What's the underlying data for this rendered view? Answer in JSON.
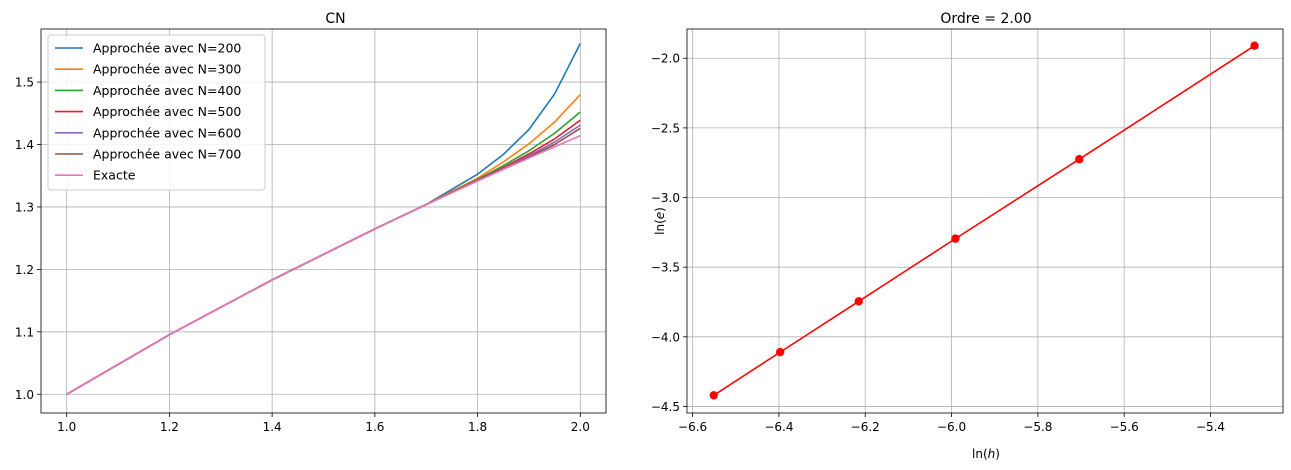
{
  "chart_data": [
    {
      "type": "line",
      "title": "CN",
      "xlabel": "",
      "ylabel": "",
      "xlim": [
        0.95,
        2.05
      ],
      "ylim": [
        0.97,
        1.585
      ],
      "xticks": [
        1.0,
        1.2,
        1.4,
        1.6,
        1.8,
        2.0
      ],
      "xtick_labels": [
        "1.0",
        "1.2",
        "1.4",
        "1.6",
        "1.8",
        "2.0"
      ],
      "yticks": [
        1.0,
        1.1,
        1.2,
        1.3,
        1.4,
        1.5
      ],
      "ytick_labels": [
        "1.0",
        "1.1",
        "1.2",
        "1.3",
        "1.4",
        "1.5"
      ],
      "grid": true,
      "legend_position": "top-left",
      "series": [
        {
          "name": "Approchée avec N=200",
          "color": "#1f77b4",
          "x": [
            1.0,
            1.2,
            1.4,
            1.6,
            1.7,
            1.8,
            1.85,
            1.9,
            1.95,
            2.0
          ],
          "y": [
            1.0,
            1.0954,
            1.1832,
            1.2649,
            1.3041,
            1.3525,
            1.384,
            1.424,
            1.481,
            1.562
          ]
        },
        {
          "name": "Approchée avec N=300",
          "color": "#ff7f0e",
          "x": [
            1.0,
            1.2,
            1.4,
            1.6,
            1.7,
            1.8,
            1.85,
            1.9,
            1.95,
            2.0
          ],
          "y": [
            1.0,
            1.0954,
            1.1832,
            1.2649,
            1.3039,
            1.346,
            1.372,
            1.401,
            1.436,
            1.48
          ]
        },
        {
          "name": "Approchée avec N=400",
          "color": "#2ca02c",
          "x": [
            1.0,
            1.2,
            1.4,
            1.6,
            1.7,
            1.8,
            1.85,
            1.9,
            1.95,
            2.0
          ],
          "y": [
            1.0,
            1.0954,
            1.1832,
            1.2649,
            1.3038,
            1.344,
            1.366,
            1.39,
            1.418,
            1.452
          ]
        },
        {
          "name": "Approchée avec N=500",
          "color": "#d62728",
          "x": [
            1.0,
            1.2,
            1.4,
            1.6,
            1.7,
            1.8,
            1.85,
            1.9,
            1.95,
            2.0
          ],
          "y": [
            1.0,
            1.0954,
            1.1832,
            1.2649,
            1.3038,
            1.343,
            1.363,
            1.385,
            1.409,
            1.439
          ]
        },
        {
          "name": "Approchée avec N=600",
          "color": "#9467bd",
          "x": [
            1.0,
            1.2,
            1.4,
            1.6,
            1.7,
            1.8,
            1.85,
            1.9,
            1.95,
            2.0
          ],
          "y": [
            1.0,
            1.0954,
            1.1832,
            1.2649,
            1.3038,
            1.3425,
            1.3615,
            1.382,
            1.404,
            1.431
          ]
        },
        {
          "name": "Approchée avec N=700",
          "color": "#8c564b",
          "x": [
            1.0,
            1.2,
            1.4,
            1.6,
            1.7,
            1.8,
            1.85,
            1.9,
            1.95,
            2.0
          ],
          "y": [
            1.0,
            1.0954,
            1.1832,
            1.2649,
            1.3038,
            1.3421,
            1.3605,
            1.38,
            1.4,
            1.426
          ]
        },
        {
          "name": "Exacte",
          "color": "#e377c2",
          "x": [
            1.0,
            1.2,
            1.4,
            1.6,
            1.7,
            1.8,
            1.85,
            1.9,
            1.95,
            2.0
          ],
          "y": [
            1.0,
            1.0954,
            1.1832,
            1.2649,
            1.3038,
            1.3416,
            1.3601,
            1.3784,
            1.3964,
            1.4142
          ]
        }
      ]
    },
    {
      "type": "line",
      "title": "Ordre = 2.00",
      "xlabel": "ln(h)",
      "ylabel": "ln(e)",
      "xlim": [
        -6.613,
        -5.232
      ],
      "ylim": [
        -4.547,
        -1.79
      ],
      "xticks": [
        -6.6,
        -6.4,
        -6.2,
        -6.0,
        -5.8,
        -5.6,
        -5.4
      ],
      "xtick_labels": [
        "−6.6",
        "−6.4",
        "−6.2",
        "−6.0",
        "−5.8",
        "−5.6",
        "−5.4"
      ],
      "yticks": [
        -4.5,
        -4.0,
        -3.5,
        -3.0,
        -2.5,
        -2.0
      ],
      "ytick_labels": [
        "−4.5",
        "−4.0",
        "−3.5",
        "−3.0",
        "−2.5",
        "−2.0"
      ],
      "grid": true,
      "series": [
        {
          "color": "#ff0000",
          "marker": "circle",
          "x": [
            -6.551,
            -6.397,
            -6.215,
            -5.991,
            -5.704,
            -5.298
          ],
          "y": [
            -4.42,
            -4.11,
            -3.745,
            -3.295,
            -2.725,
            -1.91
          ]
        }
      ]
    }
  ]
}
